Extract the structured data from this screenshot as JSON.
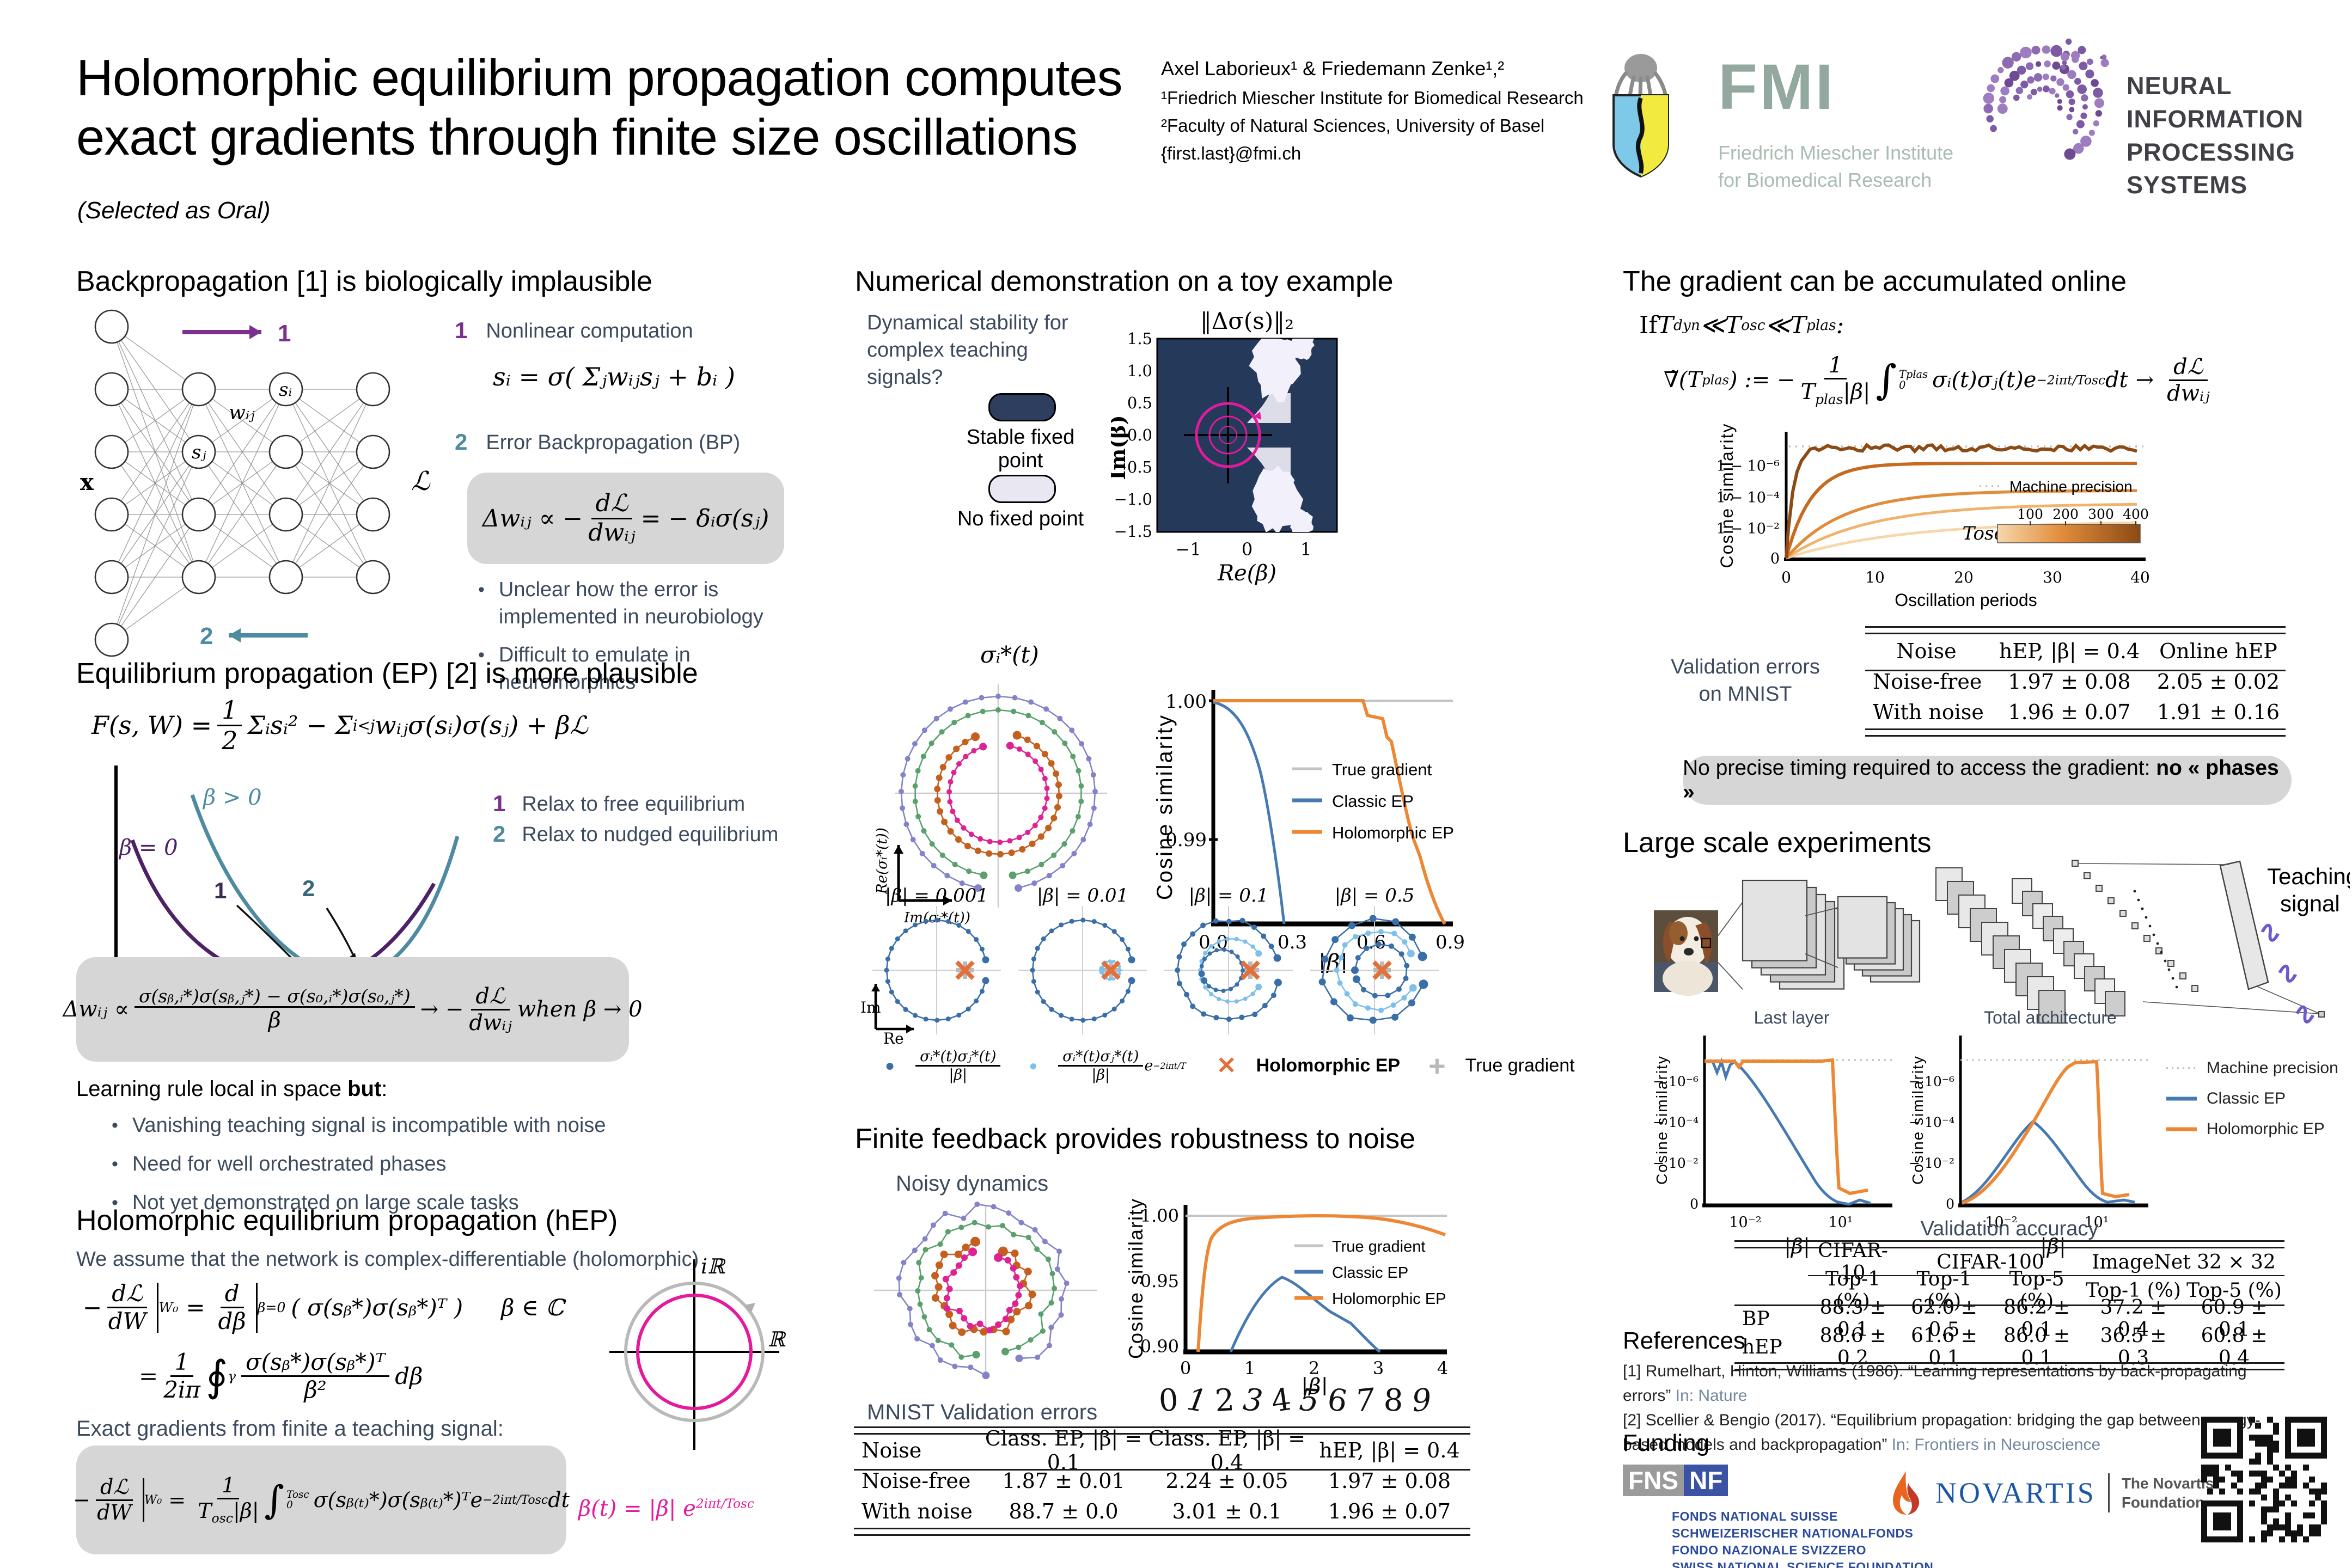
{
  "colors": {
    "navy": "#25395a",
    "magenta": "#e5199c",
    "orange": "#ee8733",
    "blue": "#4679b2",
    "lightblue": "#74b3e3",
    "gray_line": "#c4c4c4",
    "purple": "#7b2f8e",
    "teal": "#4e8ba0",
    "graybox": "#d6d6d6",
    "orange_x": "#e2703a"
  },
  "header": {
    "title1": "Holomorphic equilibrium propagation computes",
    "title2": "exact gradients through finite size oscillations",
    "selected": "(Selected as Oral)",
    "authors": "Axel Laborieux¹ & Friedemann Zenke¹,²",
    "affil1": "¹Friedrich Miescher Institute for Biomedical Research",
    "affil2": "²Faculty of Natural Sciences, University of Basel",
    "email": "{first.last}@fmi.ch",
    "fmi": {
      "abbr": "FMI",
      "sub1": "Friedrich Miescher Institute",
      "sub2": "for Biomedical Research"
    },
    "neurips": {
      "line1": "NEURAL INFORMATION",
      "line2": "PROCESSING SYSTEMS"
    }
  },
  "bp": {
    "heading": "Backpropagation [1] is biologically implausible",
    "step1_num": "1",
    "step1": "Nonlinear computation",
    "eq1": "sᵢ = σ( Σⱼwᵢⱼsⱼ + bᵢ )",
    "step2_num": "2",
    "step2": "Error Backpropagation (BP)",
    "eq2_pre": "Δwᵢⱼ ∝ −",
    "eq2_num": "dℒ",
    "eq2_den": "dwᵢⱼ",
    "eq2_post": "= − δᵢσ(sⱼ)",
    "bullets": [
      "Unclear how the error is implemented in neurobiology",
      "Difficult to emulate in neuromorphics"
    ],
    "net": {
      "x": "x",
      "wij": "wᵢⱼ",
      "si": "sᵢ",
      "sj": "sⱼ",
      "loss": "ℒ",
      "f1": "1",
      "f2": "2"
    }
  },
  "ep": {
    "heading": "Equilibrium propagation (EP) [2] is more plausible",
    "eq_pre": "F(s, W) =",
    "eq_fnum": "1",
    "eq_fden": "2",
    "eq_mid": "Σᵢsᵢ² − Σ",
    "eq_sub": "i<j",
    "eq_post": "wᵢⱼσ(sᵢ)σ(sⱼ) + βℒ",
    "plot": {
      "beta_pos": "β > 0",
      "beta_zero": "β = 0",
      "n1": "1",
      "n2": "2",
      "t1": "s₀*",
      "t2": "sᵦ*"
    },
    "steps": [
      {
        "n": "1",
        "label": "Relax to free equilibrium"
      },
      {
        "n": "2",
        "label": "Relax to nudged equilibrium"
      }
    ],
    "upd_pre": "Δwᵢⱼ ∝",
    "upd_num": "σ(sᵦ,ᵢ*)σ(sᵦ,ⱼ*) − σ(s₀,ᵢ*)σ(s₀,ⱼ*)",
    "upd_den": "β",
    "upd_arrow": "→ −",
    "upd_fnum": "dℒ",
    "upd_fden": "dwᵢⱼ",
    "upd_when": "when β → 0",
    "local_pre": "Learning rule local in space ",
    "local_bold": "but",
    "local_colon": ":",
    "bullets": [
      "Vanishing teaching signal is incompatible with noise",
      "Need for well orchestrated phases",
      "Not yet demonstrated on large scale tasks"
    ]
  },
  "hep": {
    "heading": "Holomorphic equilibrium propagation (hEP)",
    "intro": "We assume that the network is complex-differentiable (holomorphic)",
    "eq1": {
      "minus": "−",
      "f1n": "dℒ",
      "f1d": "dW",
      "bar1sub": "W₀",
      "eq": "=",
      "f2n": "d",
      "f2d": "dβ",
      "bar2sub": "β=0",
      "body": "( σ(sᵦ*)σ(sᵦ*)ᵀ )",
      "beta": "β ∈ ℂ"
    },
    "eq2": {
      "eq": "=",
      "f1n": "1",
      "f1d": "2iπ",
      "oint": "∮",
      "ointsub": "γ",
      "f2n": "σ(sᵦ*)σ(sᵦ*)ᵀ",
      "f2d": "β²",
      "post": "dβ"
    },
    "axes": {
      "im": "iℝ",
      "re": "ℝ"
    },
    "exact": "Exact gradients from finite a teaching signal:",
    "box": {
      "minus": "−",
      "f1n": "dℒ",
      "f1d": "dW",
      "barsub": "W₀",
      "eq": "=",
      "f2n": "1",
      "f2dT": "T",
      "f2dsub": "osc",
      "f2dabs": "|β|",
      "int": "∫",
      "intsup": "Tosc",
      "intsub": "0",
      "body": "σ(sᵦ₍ₜ₎*)σ(sᵦ₍ₜ₎*)ᵀe",
      "exp": "−2iπt/Tosc",
      "dt": "dt"
    },
    "beta_t": {
      "pre": "β(t) = |β| e",
      "exp": "2iπt/Tosc"
    }
  },
  "toy": {
    "heading": "Numerical demonstration on a toy example",
    "question": "Dynamical stability for complex teaching signals?",
    "legend1": "Stable fixed point",
    "legend2": "No fixed point",
    "stab": {
      "title": "‖Δσ(s)‖₂",
      "ylabel": "Im(β)",
      "yticks": [
        "1.5",
        "1.0",
        "0.5",
        "0.0",
        "−0.5",
        "−1.0",
        "−1.5"
      ],
      "xticks": [
        "−1",
        "0",
        "1"
      ],
      "xlabel": "Re(β)"
    },
    "spiral": {
      "title": "σᵢ*(t)",
      "ylabel": "Re(σᵢ*(t))",
      "xlabel": "Im(σᵢ*(t))"
    },
    "cos": {
      "ylabel": "Cosine similarity",
      "yticks": [
        "1.00",
        "0.99"
      ],
      "xticks": [
        "0.0",
        "0.3",
        "0.6",
        "0.9"
      ],
      "xlabel": "|β|",
      "legend": [
        "True gradient",
        "Classic EP",
        "Holomorphic EP"
      ]
    },
    "betas": [
      "|β| = 0.001",
      "|β| = 0.01",
      "|β| = 0.1",
      "|β| = 0.5"
    ],
    "im": "Im",
    "re": "Re",
    "leg_f1n": "σᵢ*(t)σⱼ*(t)",
    "leg_f1d": "|β|",
    "leg_f2n": "σᵢ*(t)σⱼ*(t)",
    "leg_f2d": "|β|",
    "leg_f2e": "e",
    "leg_f2exp": "−2iπt/T",
    "leg_x": "✕",
    "leg_hep": "Holomorphic EP",
    "leg_plus": "+",
    "leg_true": "True gradient"
  },
  "noise": {
    "heading": "Finite feedback provides robustness to noise",
    "noisy": "Noisy dynamics",
    "cos": {
      "ylabel": "Cosine similarity",
      "yticks": [
        "1.00",
        "0.95",
        "0.90"
      ],
      "xticks": [
        "0",
        "1",
        "2",
        "3",
        "4"
      ],
      "xlabel": "|β|",
      "legend": [
        "True gradient",
        "Classic EP",
        "Holomorphic EP"
      ]
    },
    "mnist_label": "MNIST Validation errors",
    "digits": [
      "0",
      "1",
      "2",
      "3",
      "4",
      "5",
      "6",
      "7",
      "8",
      "9"
    ],
    "table": {
      "headers": [
        "Noise",
        "Class. EP, |β| = 0.1",
        "Class. EP, |β| = 0.4",
        "hEP, |β| = 0.4"
      ],
      "rows": [
        [
          "Noise-free",
          "1.87 ± 0.01",
          "2.24 ± 0.05",
          "1.97 ± 0.08"
        ],
        [
          "With noise",
          "88.7 ± 0.0",
          "3.01 ± 0.1",
          "1.96 ± 0.07"
        ]
      ]
    }
  },
  "online": {
    "heading": "The gradient can be accumulated online",
    "cond": {
      "if": "If ",
      "T1": "T",
      "s1": "dyn",
      "ll1": " ≪ ",
      "T2": "T",
      "s2": "osc",
      "ll2": " ≪ ",
      "T3": "T",
      "s3": "plas",
      "colon": " :"
    },
    "eq": {
      "nabla": "∇̃(T",
      "nablasub": "plas",
      "nabla2": ") := −",
      "f1n": "1",
      "f1dT": "T",
      "f1dsub": "plas",
      "f1dabs": "|β|",
      "int": "∫",
      "intsup": "Tplas",
      "intsub": "0",
      "body": "σᵢ(t)σⱼ(t)e",
      "exp": "−2iπt/Tosc",
      "dt": "dt",
      "arrow": "→",
      "f2n": "dℒ",
      "f2d": "dwᵢⱼ"
    },
    "plot": {
      "ylabel": "Cosine similarity",
      "yticks": [
        "1 − 10⁻⁶",
        "1 − 10⁻⁴",
        "1 − 10⁻²",
        "0"
      ],
      "xticks": [
        "0",
        "10",
        "20",
        "30",
        "40"
      ],
      "xlabel": "Oscillation periods",
      "mp": "Machine precision",
      "cbar": "Tosc",
      "cbar_ticks": [
        "100",
        "200",
        "300",
        "400"
      ]
    },
    "vlabel1": "Validation errors",
    "vlabel2": "on MNIST",
    "table": {
      "headers": [
        "Noise",
        "hEP, |β| = 0.4",
        "Online hEP"
      ],
      "rows": [
        [
          "Noise-free",
          "1.97 ± 0.08",
          "2.05 ± 0.02"
        ],
        [
          "With noise",
          "1.96 ± 0.07",
          "1.91 ± 0.16"
        ]
      ]
    },
    "banner_pre": "No precise timing required to access the gradient: ",
    "banner_bold": "no « phases »"
  },
  "large": {
    "heading": "Large scale experiments",
    "teaching1": "Teaching",
    "teaching2": "signal",
    "p1": "Last layer",
    "p2": "Total architecture",
    "ylabel": "Cosine similarity",
    "yticks": [
      "1 − 10⁻⁶",
      "1 − 10⁻⁴",
      "1 − 10⁻²",
      "0"
    ],
    "xticks": [
      "10⁻²",
      "10¹"
    ],
    "xlabel": "|β|",
    "legend": [
      "Machine precision",
      "Classic EP",
      "Holomorphic EP"
    ],
    "vacc": "Validation accuracy",
    "table": {
      "groups": [
        "CIFAR-10",
        "CIFAR-100",
        "ImageNet 32 × 32"
      ],
      "sub": [
        "Top-1 (%)",
        "Top-1 (%)",
        "Top-5 (%)",
        "Top-1 (%)",
        "Top-5 (%)"
      ],
      "rows": [
        [
          "BP",
          "88.3 ± 0.1",
          "62.0 ± 0.5",
          "86.2 ± 0.1",
          "37.2 ± 0.4",
          "60.9 ± 0.1"
        ],
        [
          "hEP",
          "88.6 ± 0.2",
          "61.6 ± 0.1",
          "86.0 ± 0.1",
          "36.5 ± 0.3",
          "60.8 ± 0.4"
        ]
      ]
    }
  },
  "refs": {
    "heading": "References",
    "r1": "[1] Rumelhart, Hinton, Williams (1986). “Learning representations by back-propagating errors” ",
    "r1v": "In: Nature",
    "r2": "[2] Scellier & Bengio (2017). “Equilibrium propagation: bridging the gap between energy-based models and backpropagation” ",
    "r2v": "In: Frontiers in Neuroscience"
  },
  "funding": {
    "heading": "Funding",
    "fns": "FNS",
    "nf": "NF",
    "l1": "Fonds national suisse",
    "l2": "Schweizerischer Nationalfonds",
    "l3": "Fondo nazionale svizzero",
    "l4": "Swiss National Science Foundation",
    "novartis": "NOVARTIS",
    "nov1": "The Novartis",
    "nov2": "Foundation"
  }
}
